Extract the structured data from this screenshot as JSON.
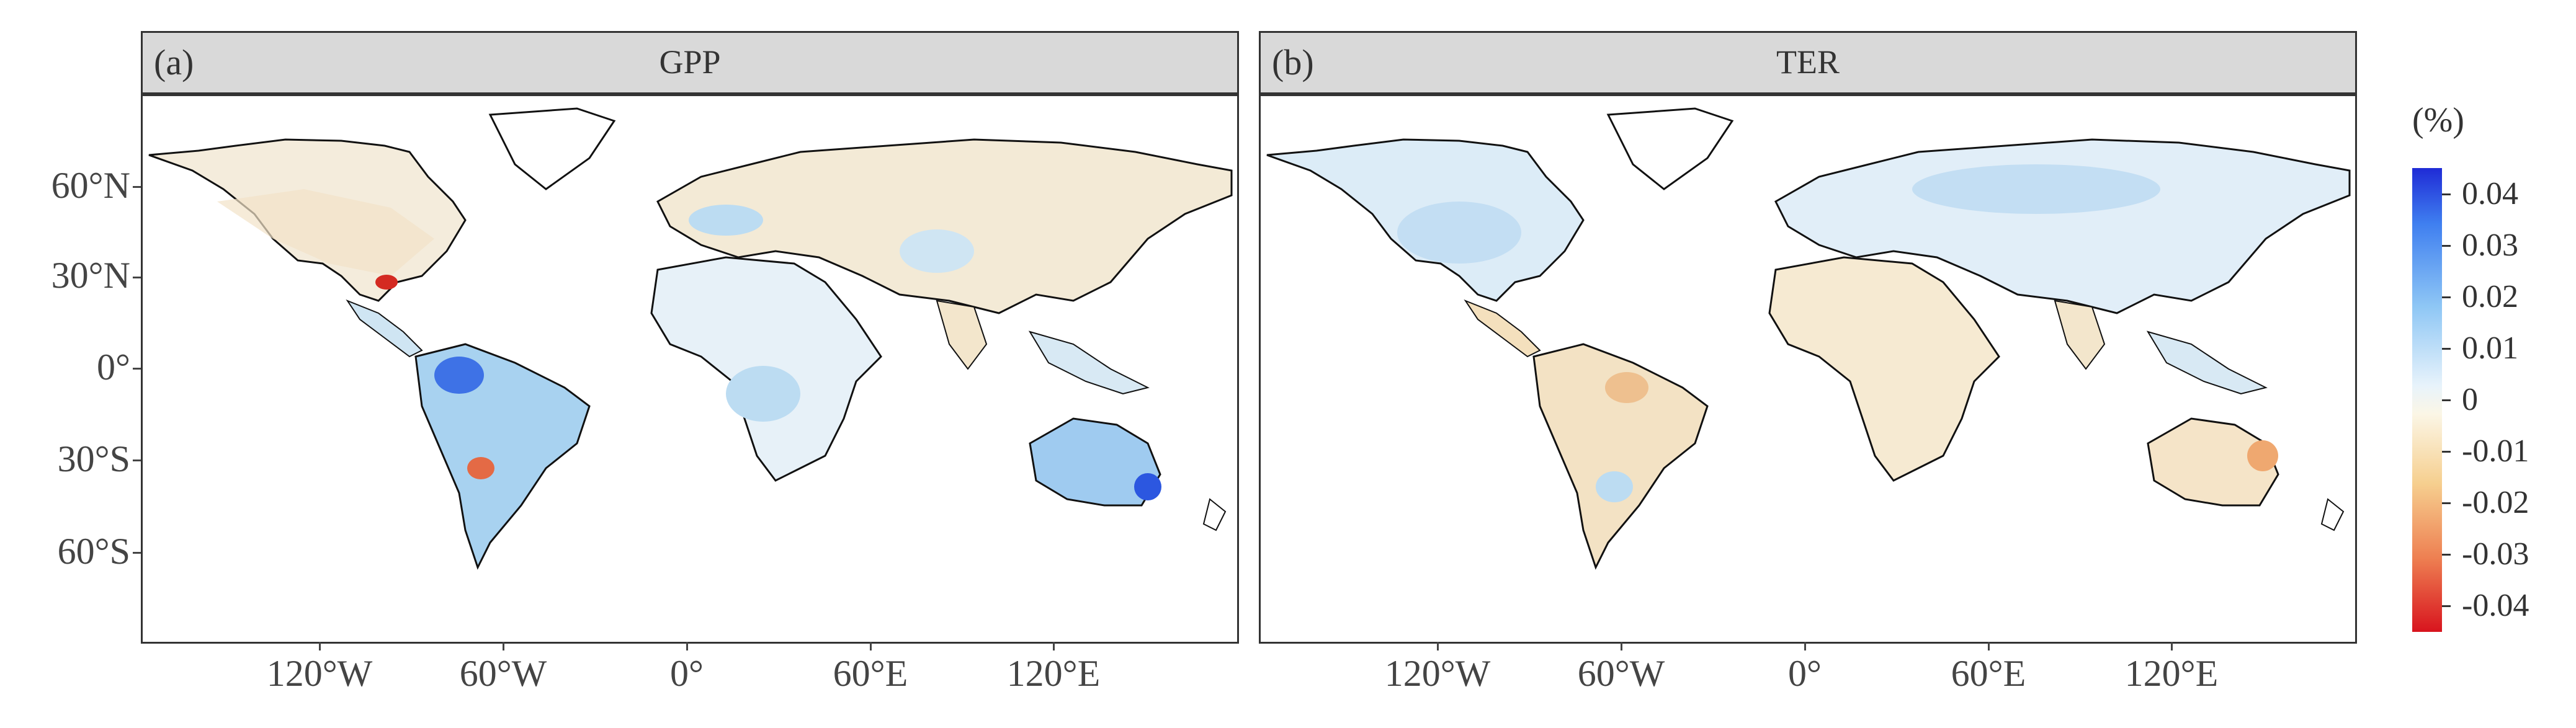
{
  "panels": [
    {
      "tag": "(a)",
      "title": "GPP"
    },
    {
      "tag": "(b)",
      "title": "TER"
    }
  ],
  "axes": {
    "y_labels": [
      "60°N",
      "30°N",
      "0°",
      "30°S",
      "60°S"
    ],
    "x_labels": [
      "120°W",
      "60°W",
      "0°",
      "60°E",
      "120°E"
    ]
  },
  "legend": {
    "title": "(%)",
    "ticks": [
      "0.04",
      "0.03",
      "0.02",
      "0.01",
      "0",
      "-0.01",
      "-0.02",
      "-0.03",
      "-0.04"
    ],
    "range": [
      -0.045,
      0.045
    ],
    "colors": {
      "max": "#1f2bd6",
      "mid": "#f7f7f0",
      "min": "#d8141e"
    }
  }
}
